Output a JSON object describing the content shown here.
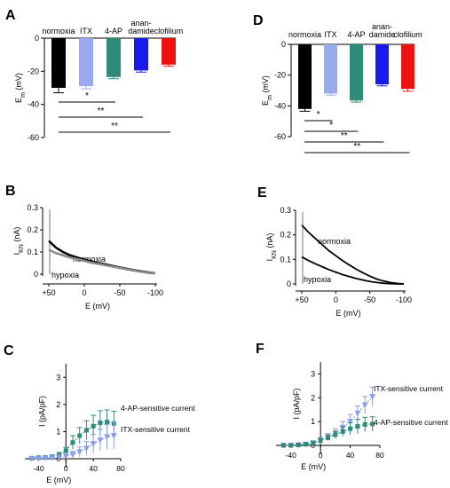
{
  "panels": {
    "A": {
      "letter": "A"
    },
    "B": {
      "letter": "B"
    },
    "C": {
      "letter": "C"
    },
    "D": {
      "letter": "D"
    },
    "E": {
      "letter": "E"
    },
    "F": {
      "letter": "F"
    }
  },
  "chart_data": [
    {
      "panel": "A",
      "type": "bar",
      "categories": [
        "normoxia",
        "ITX",
        "4-AP",
        "anan-\ndamide",
        "clofilium"
      ],
      "values": [
        -30,
        -29,
        -23.5,
        -19.5,
        -16
      ],
      "errors": [
        3,
        1.5,
        1,
        1,
        1
      ],
      "colors": [
        "#000000",
        "#99aaee",
        "#2e8b7a",
        "#1a1aee",
        "#ee1111"
      ],
      "ylabel": "E_m (mV)",
      "ylim": [
        -60,
        0
      ],
      "yticks": [
        "0",
        "-20",
        "-40",
        "-60"
      ],
      "significance": [
        {
          "from": "normoxia",
          "to": "4-AP",
          "label": "*"
        },
        {
          "from": "normoxia",
          "to": "anan-damide",
          "label": "**"
        },
        {
          "from": "normoxia",
          "to": "clofilium",
          "label": "**"
        }
      ]
    },
    {
      "panel": "D",
      "type": "bar",
      "categories": [
        "normoxia",
        "ITX",
        "4-AP",
        "anan-\ndamide",
        "clofilium"
      ],
      "values": [
        -42,
        -32,
        -36.5,
        -26,
        -29
      ],
      "errors": [
        1.5,
        1,
        1,
        1,
        1.5
      ],
      "colors": [
        "#000000",
        "#99aaee",
        "#2e8b7a",
        "#1a1aee",
        "#ee1111"
      ],
      "ylabel": "E_m (mV)",
      "ylim": [
        -60,
        0
      ],
      "yticks": [
        "0",
        "-20",
        "-40",
        "-60"
      ],
      "significance": [
        {
          "from": "normoxia",
          "to": "ITX",
          "label": "*"
        },
        {
          "from": "normoxia",
          "to": "4-AP",
          "label": "*"
        },
        {
          "from": "normoxia",
          "to": "anan-damide",
          "label": "**"
        },
        {
          "from": "normoxia",
          "to": "clofilium",
          "label": "**"
        }
      ]
    },
    {
      "panel": "B",
      "type": "line",
      "xlabel": "E (mV)",
      "ylabel": "I_KN (nA)",
      "xlim": [
        50,
        -100
      ],
      "ylim": [
        0,
        0.3
      ],
      "xticks": [
        "+50",
        "0",
        "-50",
        "-100"
      ],
      "yticks": [
        "0",
        "0.1",
        "0.2",
        "0.3"
      ],
      "series": [
        {
          "name": "normoxia",
          "color": "#000000",
          "x": [
            50,
            40,
            30,
            20,
            10,
            0,
            -10,
            -20,
            -30,
            -40,
            -50,
            -60,
            -70,
            -80,
            -90,
            -100
          ],
          "y": [
            0.15,
            0.12,
            0.1,
            0.085,
            0.075,
            0.065,
            0.058,
            0.05,
            0.044,
            0.037,
            0.03,
            0.024,
            0.018,
            0.013,
            0.008,
            0.004
          ]
        },
        {
          "name": "hypoxia",
          "color": "#8a8a8a",
          "x": [
            50,
            40,
            30,
            20,
            10,
            0,
            -10,
            -20,
            -30,
            -40,
            -50,
            -60,
            -70,
            -80,
            -90,
            -100
          ],
          "y": [
            0.11,
            0.095,
            0.085,
            0.075,
            0.068,
            0.06,
            0.052,
            0.046,
            0.04,
            0.034,
            0.028,
            0.022,
            0.016,
            0.011,
            0.006,
            0.003
          ]
        }
      ]
    },
    {
      "panel": "E",
      "type": "line",
      "xlabel": "E (mV)",
      "ylabel": "I_KN (nA)",
      "xlim": [
        50,
        -100
      ],
      "ylim": [
        0,
        0.3
      ],
      "xticks": [
        "+50",
        "0",
        "-50",
        "-100"
      ],
      "yticks": [
        "0",
        "0.1",
        "0.2",
        "0.3"
      ],
      "series": [
        {
          "name": "normoxia",
          "color": "#000000",
          "x": [
            50,
            40,
            30,
            20,
            10,
            0,
            -10,
            -20,
            -30,
            -40,
            -50,
            -60,
            -70,
            -80,
            -90,
            -100
          ],
          "y": [
            0.24,
            0.21,
            0.185,
            0.16,
            0.135,
            0.115,
            0.095,
            0.077,
            0.06,
            0.045,
            0.032,
            0.02,
            0.012,
            0.006,
            0.002,
            0.0
          ]
        },
        {
          "name": "hypoxia",
          "color": "#000000",
          "x": [
            50,
            40,
            30,
            20,
            10,
            0,
            -10,
            -20,
            -30,
            -40,
            -50,
            -60,
            -70,
            -80,
            -90,
            -100
          ],
          "y": [
            0.11,
            0.095,
            0.082,
            0.07,
            0.058,
            0.048,
            0.038,
            0.03,
            0.022,
            0.016,
            0.01,
            0.006,
            0.003,
            0.001,
            0.0,
            0.0
          ]
        }
      ]
    },
    {
      "panel": "C",
      "type": "scatter",
      "xlabel": "E (mV)",
      "ylabel": "I (pA/pF)",
      "xlim": [
        -60,
        80
      ],
      "ylim": [
        0,
        3.5
      ],
      "xticks": [
        "-40",
        "0",
        "40",
        "80"
      ],
      "yticks": [
        "0",
        "1",
        "2",
        "3"
      ],
      "series": [
        {
          "name": "4-AP-sensitive current",
          "color": "#2e8b7a",
          "marker": "square",
          "x": [
            -50,
            -40,
            -30,
            -20,
            -10,
            0,
            10,
            20,
            30,
            40,
            50,
            60,
            70
          ],
          "y": [
            0.02,
            0.04,
            0.05,
            0.08,
            0.15,
            0.3,
            0.6,
            0.85,
            1.05,
            1.2,
            1.32,
            1.35,
            1.3
          ],
          "err": [
            0.02,
            0.02,
            0.03,
            0.04,
            0.08,
            0.12,
            0.25,
            0.3,
            0.35,
            0.4,
            0.45,
            0.45,
            0.45
          ]
        },
        {
          "name": "ITX-sensitive current",
          "color": "#8a9ee8",
          "marker": "triangle",
          "x": [
            -50,
            -40,
            -30,
            -20,
            -10,
            0,
            10,
            20,
            30,
            40,
            50,
            60,
            70
          ],
          "y": [
            0.0,
            0.0,
            0.02,
            0.03,
            0.05,
            0.1,
            0.15,
            0.25,
            0.38,
            0.55,
            0.68,
            0.8,
            0.85
          ],
          "err": [
            0.02,
            0.02,
            0.03,
            0.04,
            0.05,
            0.08,
            0.12,
            0.18,
            0.25,
            0.35,
            0.4,
            0.45,
            0.5
          ]
        }
      ]
    },
    {
      "panel": "F",
      "type": "scatter",
      "xlabel": "E (mV)",
      "ylabel": "I (pA/pF)",
      "xlim": [
        -60,
        80
      ],
      "ylim": [
        0,
        3.5
      ],
      "xticks": [
        "-40",
        "0",
        "40",
        "80"
      ],
      "yticks": [
        "0",
        "1",
        "2",
        "3"
      ],
      "series": [
        {
          "name": "ITX-sensitive current",
          "color": "#8a9ee8",
          "marker": "triangle",
          "x": [
            -50,
            -40,
            -30,
            -20,
            -10,
            0,
            10,
            20,
            30,
            40,
            50,
            60,
            70
          ],
          "y": [
            0.0,
            0.0,
            0.02,
            0.04,
            0.1,
            0.2,
            0.35,
            0.5,
            0.75,
            1.0,
            1.35,
            1.7,
            2.05
          ],
          "err": [
            0.02,
            0.02,
            0.03,
            0.05,
            0.08,
            0.12,
            0.15,
            0.2,
            0.25,
            0.3,
            0.3,
            0.35,
            0.4
          ]
        },
        {
          "name": "4-AP-sensitive current",
          "color": "#2e8b7a",
          "marker": "square",
          "x": [
            -50,
            -40,
            -30,
            -20,
            -10,
            0,
            10,
            20,
            30,
            40,
            50,
            60,
            70
          ],
          "y": [
            0.0,
            0.0,
            0.02,
            0.05,
            0.1,
            0.2,
            0.32,
            0.45,
            0.58,
            0.7,
            0.8,
            0.88,
            0.9
          ],
          "err": [
            0.02,
            0.02,
            0.03,
            0.05,
            0.08,
            0.1,
            0.12,
            0.15,
            0.2,
            0.25,
            0.3,
            0.3,
            0.3
          ]
        }
      ]
    }
  ]
}
